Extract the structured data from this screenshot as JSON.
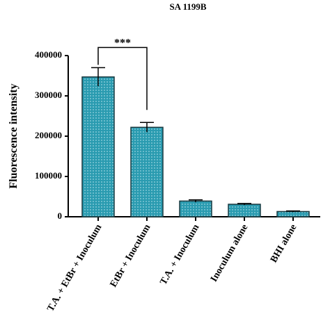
{
  "chart_data": {
    "type": "bar",
    "title": "SA 1199B",
    "y_label": "Fluorescence intensity",
    "categories": [
      "T.A. + EtBr + Inoculum",
      "EtBr + Inoculum",
      "T.A. +  Inoculum",
      "Inoculum alone",
      "BHI alone"
    ],
    "values": [
      347000,
      222000,
      39000,
      31000,
      13000
    ],
    "errors": [
      23000,
      12000,
      3000,
      2000,
      1500
    ],
    "color": "#2a9bb0",
    "ylim": [
      0,
      400000
    ],
    "yticks": [
      0,
      100000,
      200000,
      300000,
      400000
    ],
    "annotations": [
      {
        "text": "***"
      }
    ]
  }
}
